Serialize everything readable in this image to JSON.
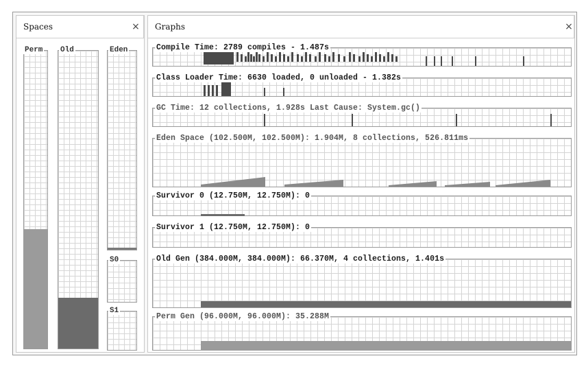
{
  "spaces_panel": {
    "tab_label": "Spaces",
    "close_glyph": "×",
    "bars": [
      {
        "label": "Perm",
        "fill_fraction": 0.4
      },
      {
        "label": "Old",
        "fill_fraction": 0.17
      },
      {
        "label": "Eden",
        "fill_fraction": 0.01
      },
      {
        "label": "S0",
        "fill_fraction": 0.0
      },
      {
        "label": "S1",
        "fill_fraction": 0.0
      }
    ]
  },
  "graphs_panel": {
    "tab_label": "Graphs",
    "close_glyph": "×",
    "graphs": [
      {
        "title": "Compile Time: 2789 compiles - 1.487s"
      },
      {
        "title": "Class Loader Time: 6630 loaded, 0 unloaded - 1.382s"
      },
      {
        "title": "GC Time: 12 collections, 1.928s  Last Cause: System.gc()"
      },
      {
        "title": "Eden Space (102.500M, 102.500M): 1.904M, 8 collections, 526.811ms"
      },
      {
        "title": "Survivor 0 (12.750M, 12.750M): 0"
      },
      {
        "title": "Survivor 1 (12.750M, 12.750M): 0"
      },
      {
        "title": "Old Gen (384.000M, 384.000M): 66.370M, 4 collections, 1.401s"
      },
      {
        "title": "Perm Gen (96.000M, 96.000M): 35.288M"
      }
    ]
  },
  "colors": {
    "fill_light": "#9b9b9b",
    "fill_dark": "#6b6b6b",
    "spike": "#4a4a4a"
  }
}
